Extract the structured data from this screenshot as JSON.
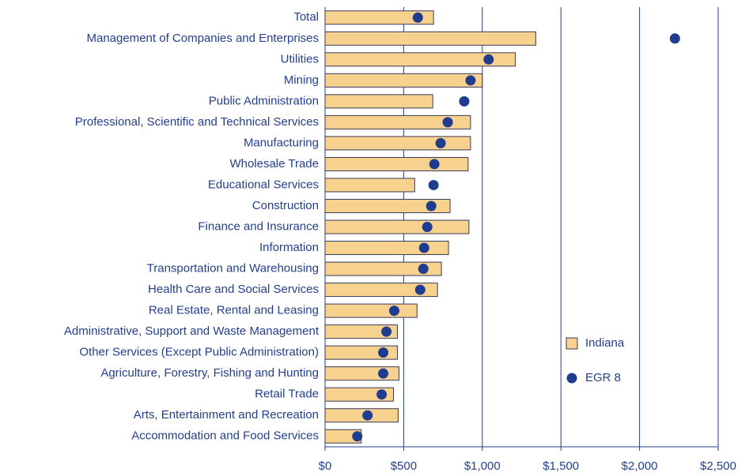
{
  "chart_data": {
    "type": "bar",
    "orientation": "horizontal",
    "categories": [
      "Total",
      "Management of Companies and Enterprises",
      "Utilities",
      "Mining",
      "Public Administration",
      "Professional, Scientific and Technical Services",
      "Manufacturing",
      "Wholesale Trade",
      "Educational Services",
      "Construction",
      "Finance and Insurance",
      "Information",
      "Transportation and Warehousing",
      "Health Care and Social Services",
      "Real Estate, Rental and Leasing",
      "Administrative, Support and Waste Management",
      "Other Services (Except Public Administration)",
      "Agriculture, Forestry, Fishing and Hunting",
      "Retail Trade",
      "Arts, Entertainment and Recreation",
      "Accommodation and Food Services"
    ],
    "series": [
      {
        "name": "Indiana",
        "color": "#f6d28e",
        "mark": "bar",
        "values": [
          690,
          1340,
          1210,
          1000,
          685,
          925,
          925,
          910,
          570,
          795,
          915,
          785,
          740,
          715,
          585,
          460,
          460,
          470,
          435,
          465,
          230
        ]
      },
      {
        "name": "EGR 8",
        "color": "#1f3c8e",
        "mark": "dot",
        "values": [
          590,
          2225,
          1040,
          925,
          885,
          780,
          735,
          695,
          690,
          675,
          650,
          630,
          625,
          605,
          440,
          390,
          370,
          370,
          360,
          270,
          205
        ]
      }
    ],
    "xlim": [
      0,
      2500
    ],
    "xticks": [
      {
        "value": 0,
        "label": "$0"
      },
      {
        "value": 500,
        "label": "$500"
      },
      {
        "value": 1000,
        "label": "$1,000"
      },
      {
        "value": 1500,
        "label": "$1,500"
      },
      {
        "value": 2000,
        "label": "$2,000"
      },
      {
        "value": 2500,
        "label": "$2,500"
      }
    ],
    "grid": true,
    "legend": "right"
  }
}
